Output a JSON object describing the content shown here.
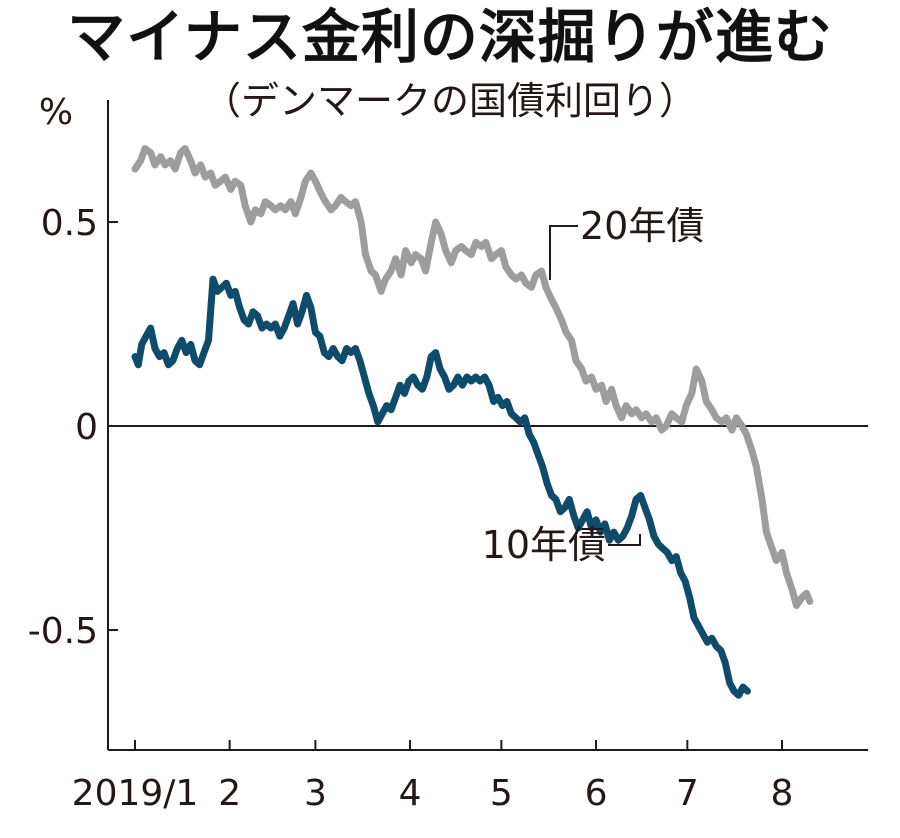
{
  "title": "マイナス金利の深掘りが進む",
  "subtitle": "（デンマークの国債利回り）",
  "colors": {
    "bond20": "#9d9d9d",
    "bond10": "#0f4c6b",
    "axis": "#231815",
    "text": "#231815"
  },
  "chart_data": {
    "type": "line",
    "title": "マイナス金利の深掘りが進む",
    "subtitle": "（デンマークの国債利回り）",
    "ylabel": "%",
    "xlabel": "",
    "ylim": [
      -0.8,
      0.73
    ],
    "yticks": [
      {
        "value": 0.5,
        "label": "0.5"
      },
      {
        "value": 0,
        "label": "0"
      },
      {
        "value": -0.5,
        "label": "-0.5"
      }
    ],
    "xlim": [
      2019.0,
      2019.63
    ],
    "xticks": [
      {
        "value": 2019.0,
        "label": "2019/1"
      },
      {
        "value": 2019.085,
        "label": "2"
      },
      {
        "value": 2019.162,
        "label": "3"
      },
      {
        "value": 2019.247,
        "label": "4"
      },
      {
        "value": 2019.329,
        "label": "5"
      },
      {
        "value": 2019.414,
        "label": "6"
      },
      {
        "value": 2019.496,
        "label": "7"
      },
      {
        "value": 2019.581,
        "label": "8"
      }
    ],
    "reference_line": 0,
    "grid": false,
    "series": [
      {
        "name": "20年債",
        "color": "#9d9d9d",
        "points": [
          [
            2019.0,
            0.63
          ],
          [
            2019.005,
            0.65
          ],
          [
            2019.009,
            0.68
          ],
          [
            2019.014,
            0.67
          ],
          [
            2019.018,
            0.64
          ],
          [
            2019.023,
            0.66
          ],
          [
            2019.027,
            0.64
          ],
          [
            2019.032,
            0.65
          ],
          [
            2019.036,
            0.63
          ],
          [
            2019.041,
            0.67
          ],
          [
            2019.045,
            0.68
          ],
          [
            2019.05,
            0.65
          ],
          [
            2019.054,
            0.62
          ],
          [
            2019.059,
            0.64
          ],
          [
            2019.063,
            0.61
          ],
          [
            2019.068,
            0.62
          ],
          [
            2019.072,
            0.59
          ],
          [
            2019.077,
            0.6
          ],
          [
            2019.081,
            0.61
          ],
          [
            2019.086,
            0.58
          ],
          [
            2019.09,
            0.6
          ],
          [
            2019.095,
            0.59
          ],
          [
            2019.099,
            0.54
          ],
          [
            2019.104,
            0.5
          ],
          [
            2019.108,
            0.53
          ],
          [
            2019.113,
            0.52
          ],
          [
            2019.117,
            0.55
          ],
          [
            2019.122,
            0.54
          ],
          [
            2019.126,
            0.53
          ],
          [
            2019.131,
            0.54
          ],
          [
            2019.135,
            0.53
          ],
          [
            2019.14,
            0.55
          ],
          [
            2019.144,
            0.52
          ],
          [
            2019.149,
            0.56
          ],
          [
            2019.153,
            0.6
          ],
          [
            2019.158,
            0.62
          ],
          [
            2019.162,
            0.6
          ],
          [
            2019.167,
            0.57
          ],
          [
            2019.171,
            0.55
          ],
          [
            2019.176,
            0.53
          ],
          [
            2019.18,
            0.54
          ],
          [
            2019.185,
            0.56
          ],
          [
            2019.189,
            0.55
          ],
          [
            2019.194,
            0.54
          ],
          [
            2019.198,
            0.55
          ],
          [
            2019.203,
            0.5
          ],
          [
            2019.207,
            0.42
          ],
          [
            2019.212,
            0.38
          ],
          [
            2019.216,
            0.37
          ],
          [
            2019.221,
            0.33
          ],
          [
            2019.225,
            0.36
          ],
          [
            2019.23,
            0.38
          ],
          [
            2019.234,
            0.41
          ],
          [
            2019.239,
            0.37
          ],
          [
            2019.243,
            0.43
          ],
          [
            2019.248,
            0.4
          ],
          [
            2019.252,
            0.42
          ],
          [
            2019.257,
            0.41
          ],
          [
            2019.261,
            0.38
          ],
          [
            2019.266,
            0.45
          ],
          [
            2019.27,
            0.5
          ],
          [
            2019.275,
            0.47
          ],
          [
            2019.279,
            0.43
          ],
          [
            2019.284,
            0.4
          ],
          [
            2019.288,
            0.43
          ],
          [
            2019.293,
            0.44
          ],
          [
            2019.297,
            0.43
          ],
          [
            2019.302,
            0.42
          ],
          [
            2019.306,
            0.45
          ],
          [
            2019.311,
            0.44
          ],
          [
            2019.315,
            0.45
          ],
          [
            2019.32,
            0.41
          ],
          [
            2019.324,
            0.42
          ],
          [
            2019.329,
            0.43
          ],
          [
            2019.333,
            0.39
          ],
          [
            2019.338,
            0.37
          ],
          [
            2019.342,
            0.36
          ],
          [
            2019.347,
            0.37
          ],
          [
            2019.351,
            0.35
          ],
          [
            2019.356,
            0.34
          ],
          [
            2019.36,
            0.37
          ],
          [
            2019.365,
            0.38
          ],
          [
            2019.369,
            0.34
          ],
          [
            2019.374,
            0.31
          ],
          [
            2019.378,
            0.29
          ],
          [
            2019.383,
            0.26
          ],
          [
            2019.387,
            0.23
          ],
          [
            2019.392,
            0.21
          ],
          [
            2019.396,
            0.16
          ],
          [
            2019.401,
            0.14
          ],
          [
            2019.405,
            0.11
          ],
          [
            2019.41,
            0.12
          ],
          [
            2019.414,
            0.09
          ],
          [
            2019.419,
            0.1
          ],
          [
            2019.423,
            0.06
          ],
          [
            2019.428,
            0.09
          ],
          [
            2019.432,
            0.05
          ],
          [
            2019.437,
            0.02
          ],
          [
            2019.441,
            0.05
          ],
          [
            2019.446,
            0.03
          ],
          [
            2019.45,
            0.04
          ],
          [
            2019.455,
            0.02
          ],
          [
            2019.459,
            0.03
          ],
          [
            2019.464,
            0.01
          ],
          [
            2019.468,
            0.02
          ],
          [
            2019.473,
            -0.01
          ],
          [
            2019.477,
            0.0
          ],
          [
            2019.482,
            0.03
          ],
          [
            2019.486,
            0.02
          ],
          [
            2019.491,
            0.01
          ],
          [
            2019.495,
            0.05
          ],
          [
            2019.5,
            0.08
          ],
          [
            2019.504,
            0.14
          ],
          [
            2019.509,
            0.11
          ],
          [
            2019.513,
            0.06
          ],
          [
            2019.518,
            0.04
          ],
          [
            2019.522,
            0.02
          ],
          [
            2019.527,
            0.01
          ],
          [
            2019.531,
            0.02
          ],
          [
            2019.536,
            -0.01
          ],
          [
            2019.54,
            0.02
          ],
          [
            2019.545,
            0.0
          ],
          [
            2019.549,
            -0.02
          ],
          [
            2019.554,
            -0.06
          ],
          [
            2019.558,
            -0.1
          ],
          [
            2019.563,
            -0.18
          ],
          [
            2019.567,
            -0.26
          ],
          [
            2019.572,
            -0.3
          ],
          [
            2019.576,
            -0.33
          ],
          [
            2019.581,
            -0.31
          ],
          [
            2019.585,
            -0.36
          ],
          [
            2019.59,
            -0.4
          ],
          [
            2019.594,
            -0.44
          ],
          [
            2019.599,
            -0.42
          ],
          [
            2019.603,
            -0.41
          ],
          [
            2019.606,
            -0.43
          ]
        ]
      },
      {
        "name": "10年債",
        "color": "#0f4c6b",
        "points": [
          [
            2019.0,
            0.17
          ],
          [
            2019.003,
            0.15
          ],
          [
            2019.006,
            0.2
          ],
          [
            2019.01,
            0.22
          ],
          [
            2019.014,
            0.24
          ],
          [
            2019.018,
            0.19
          ],
          [
            2019.022,
            0.17
          ],
          [
            2019.026,
            0.18
          ],
          [
            2019.03,
            0.15
          ],
          [
            2019.034,
            0.16
          ],
          [
            2019.038,
            0.19
          ],
          [
            2019.042,
            0.21
          ],
          [
            2019.046,
            0.18
          ],
          [
            2019.05,
            0.2
          ],
          [
            2019.054,
            0.16
          ],
          [
            2019.058,
            0.15
          ],
          [
            2019.062,
            0.18
          ],
          [
            2019.066,
            0.21
          ],
          [
            2019.07,
            0.36
          ],
          [
            2019.074,
            0.33
          ],
          [
            2019.078,
            0.34
          ],
          [
            2019.082,
            0.35
          ],
          [
            2019.086,
            0.32
          ],
          [
            2019.09,
            0.33
          ],
          [
            2019.094,
            0.29
          ],
          [
            2019.098,
            0.26
          ],
          [
            2019.102,
            0.25
          ],
          [
            2019.106,
            0.28
          ],
          [
            2019.11,
            0.27
          ],
          [
            2019.114,
            0.24
          ],
          [
            2019.118,
            0.25
          ],
          [
            2019.122,
            0.24
          ],
          [
            2019.126,
            0.25
          ],
          [
            2019.13,
            0.22
          ],
          [
            2019.134,
            0.24
          ],
          [
            2019.138,
            0.27
          ],
          [
            2019.142,
            0.3
          ],
          [
            2019.146,
            0.25
          ],
          [
            2019.15,
            0.28
          ],
          [
            2019.154,
            0.32
          ],
          [
            2019.158,
            0.29
          ],
          [
            2019.162,
            0.23
          ],
          [
            2019.166,
            0.22
          ],
          [
            2019.17,
            0.18
          ],
          [
            2019.174,
            0.17
          ],
          [
            2019.178,
            0.19
          ],
          [
            2019.182,
            0.17
          ],
          [
            2019.186,
            0.16
          ],
          [
            2019.19,
            0.19
          ],
          [
            2019.194,
            0.18
          ],
          [
            2019.198,
            0.19
          ],
          [
            2019.202,
            0.16
          ],
          [
            2019.206,
            0.12
          ],
          [
            2019.21,
            0.08
          ],
          [
            2019.214,
            0.05
          ],
          [
            2019.218,
            0.01
          ],
          [
            2019.222,
            0.03
          ],
          [
            2019.226,
            0.05
          ],
          [
            2019.23,
            0.04
          ],
          [
            2019.234,
            0.07
          ],
          [
            2019.238,
            0.1
          ],
          [
            2019.242,
            0.08
          ],
          [
            2019.246,
            0.11
          ],
          [
            2019.25,
            0.12
          ],
          [
            2019.254,
            0.1
          ],
          [
            2019.258,
            0.09
          ],
          [
            2019.262,
            0.12
          ],
          [
            2019.266,
            0.17
          ],
          [
            2019.27,
            0.18
          ],
          [
            2019.274,
            0.14
          ],
          [
            2019.278,
            0.12
          ],
          [
            2019.282,
            0.09
          ],
          [
            2019.286,
            0.1
          ],
          [
            2019.29,
            0.12
          ],
          [
            2019.294,
            0.1
          ],
          [
            2019.298,
            0.12
          ],
          [
            2019.302,
            0.11
          ],
          [
            2019.306,
            0.12
          ],
          [
            2019.31,
            0.11
          ],
          [
            2019.314,
            0.12
          ],
          [
            2019.318,
            0.1
          ],
          [
            2019.322,
            0.06
          ],
          [
            2019.326,
            0.07
          ],
          [
            2019.33,
            0.05
          ],
          [
            2019.334,
            0.06
          ],
          [
            2019.338,
            0.03
          ],
          [
            2019.342,
            0.02
          ],
          [
            2019.346,
            0.01
          ],
          [
            2019.35,
            0.02
          ],
          [
            2019.354,
            -0.02
          ],
          [
            2019.358,
            -0.04
          ],
          [
            2019.362,
            -0.07
          ],
          [
            2019.366,
            -0.1
          ],
          [
            2019.37,
            -0.14
          ],
          [
            2019.374,
            -0.17
          ],
          [
            2019.378,
            -0.18
          ],
          [
            2019.382,
            -0.21
          ],
          [
            2019.386,
            -0.2
          ],
          [
            2019.39,
            -0.18
          ],
          [
            2019.394,
            -0.22
          ],
          [
            2019.398,
            -0.25
          ],
          [
            2019.402,
            -0.23
          ],
          [
            2019.406,
            -0.21
          ],
          [
            2019.41,
            -0.25
          ],
          [
            2019.414,
            -0.23
          ],
          [
            2019.418,
            -0.26
          ],
          [
            2019.422,
            -0.24
          ],
          [
            2019.426,
            -0.28
          ],
          [
            2019.43,
            -0.26
          ],
          [
            2019.434,
            -0.28
          ],
          [
            2019.438,
            -0.27
          ],
          [
            2019.442,
            -0.25
          ],
          [
            2019.446,
            -0.22
          ],
          [
            2019.45,
            -0.18
          ],
          [
            2019.454,
            -0.17
          ],
          [
            2019.458,
            -0.2
          ],
          [
            2019.462,
            -0.23
          ],
          [
            2019.466,
            -0.27
          ],
          [
            2019.47,
            -0.29
          ],
          [
            2019.474,
            -0.3
          ],
          [
            2019.478,
            -0.31
          ],
          [
            2019.482,
            -0.33
          ],
          [
            2019.486,
            -0.32
          ],
          [
            2019.49,
            -0.36
          ],
          [
            2019.494,
            -0.38
          ],
          [
            2019.498,
            -0.42
          ],
          [
            2019.502,
            -0.47
          ],
          [
            2019.506,
            -0.49
          ],
          [
            2019.51,
            -0.51
          ],
          [
            2019.514,
            -0.53
          ],
          [
            2019.518,
            -0.52
          ],
          [
            2019.522,
            -0.54
          ],
          [
            2019.526,
            -0.55
          ],
          [
            2019.53,
            -0.58
          ],
          [
            2019.534,
            -0.63
          ],
          [
            2019.538,
            -0.65
          ],
          [
            2019.542,
            -0.66
          ],
          [
            2019.546,
            -0.64
          ],
          [
            2019.55,
            -0.65
          ]
        ]
      }
    ],
    "annotations": [
      {
        "text": "20年債",
        "series": "20年債"
      },
      {
        "text": "10年債",
        "series": "10年債"
      }
    ]
  }
}
